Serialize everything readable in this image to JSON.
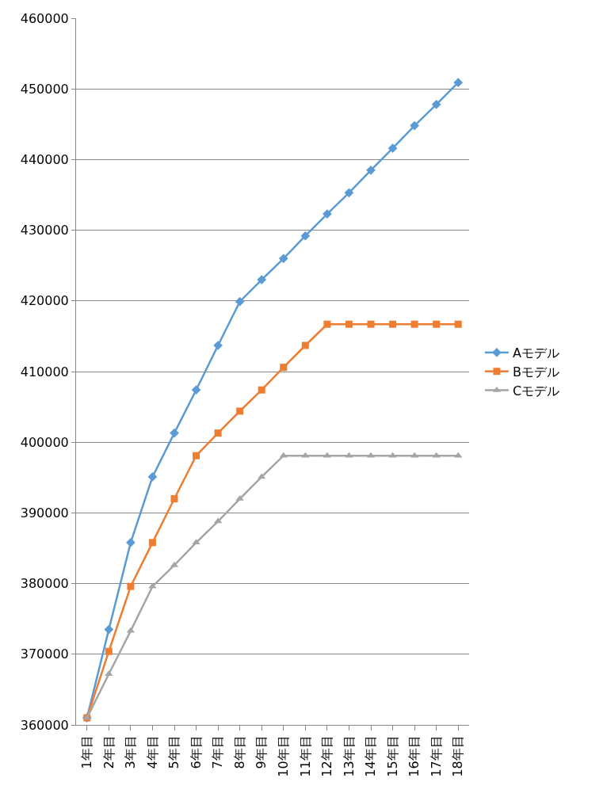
{
  "chart_data": {
    "type": "line",
    "categories": [
      "1年目",
      "2年目",
      "3年目",
      "4年目",
      "5年目",
      "6年目",
      "7年目",
      "8年目",
      "9年目",
      "10年目",
      "11年目",
      "12年目",
      "13年目",
      "14年目",
      "15年目",
      "16年目",
      "17年目",
      "18年目"
    ],
    "series": [
      {
        "name": "Aモデル",
        "color": "#5b9bd5",
        "marker": "diamond",
        "values": [
          361000,
          373500,
          385800,
          395100,
          401300,
          407400,
          413700,
          419900,
          423000,
          426000,
          429200,
          432300,
          435300,
          438500,
          441600,
          444800,
          447800,
          450900
        ]
      },
      {
        "name": "Bモデル",
        "color": "#ed7d31",
        "marker": "square",
        "values": [
          361000,
          370400,
          379600,
          385800,
          392000,
          398100,
          401300,
          404400,
          407400,
          410600,
          413700,
          416700,
          416700,
          416700,
          416700,
          416700,
          416700,
          416700
        ]
      },
      {
        "name": "Cモデル",
        "color": "#a5a5a5",
        "marker": "triangle",
        "values": [
          361000,
          367200,
          373300,
          379600,
          382600,
          385800,
          388800,
          392000,
          395100,
          398100,
          398100,
          398100,
          398100,
          398100,
          398100,
          398100,
          398100,
          398100
        ]
      }
    ],
    "ylim": [
      360000,
      460000
    ],
    "yticks": [
      360000,
      370000,
      380000,
      390000,
      400000,
      410000,
      420000,
      430000,
      440000,
      450000,
      460000
    ],
    "grid": "y",
    "legend": "right",
    "line_style": "solid"
  }
}
